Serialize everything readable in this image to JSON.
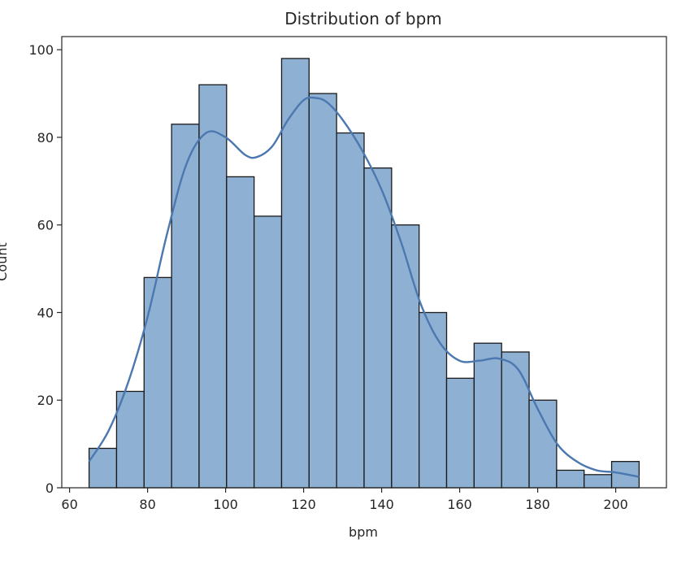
{
  "chart_data": {
    "type": "bar",
    "subtype": "histogram",
    "title": "Distribution of bpm",
    "xlabel": "bpm",
    "ylabel": "Count",
    "xlim": [
      58,
      213
    ],
    "ylim": [
      0,
      103
    ],
    "xticks": [
      60,
      80,
      100,
      120,
      140,
      160,
      180,
      200
    ],
    "yticks": [
      0,
      20,
      40,
      60,
      80,
      100
    ],
    "bin_edges": [
      65,
      72.05,
      79.1,
      86.15,
      93.2,
      100.25,
      107.3,
      114.35,
      121.4,
      128.45,
      135.5,
      142.55,
      149.6,
      156.65,
      163.7,
      170.75,
      177.8,
      184.85,
      191.9,
      198.95,
      206
    ],
    "counts": [
      9,
      22,
      48,
      83,
      92,
      71,
      62,
      98,
      90,
      81,
      73,
      60,
      40,
      25,
      33,
      31,
      20,
      4,
      3,
      6
    ],
    "kde": {
      "x": [
        65,
        70,
        75,
        80,
        85,
        90,
        95,
        100,
        105,
        108,
        112,
        116,
        120,
        123,
        126,
        130,
        135,
        140,
        145,
        150,
        155,
        160,
        165,
        170,
        175,
        180,
        185,
        190,
        195,
        200,
        206
      ],
      "y": [
        6,
        13,
        24,
        39,
        58,
        74,
        81,
        80,
        76,
        75.5,
        78,
        84,
        88.5,
        89,
        88,
        84,
        77,
        68,
        56,
        42,
        33,
        29,
        29,
        29.5,
        27,
        18,
        10,
        6,
        4,
        3.5,
        2.5
      ]
    },
    "grid": false,
    "legend": "none",
    "colors": {
      "bar_fill": "#8eb0d3",
      "bar_edge": "#1a1a1a",
      "kde_line": "#4c78b0",
      "axis": "#262626"
    }
  }
}
